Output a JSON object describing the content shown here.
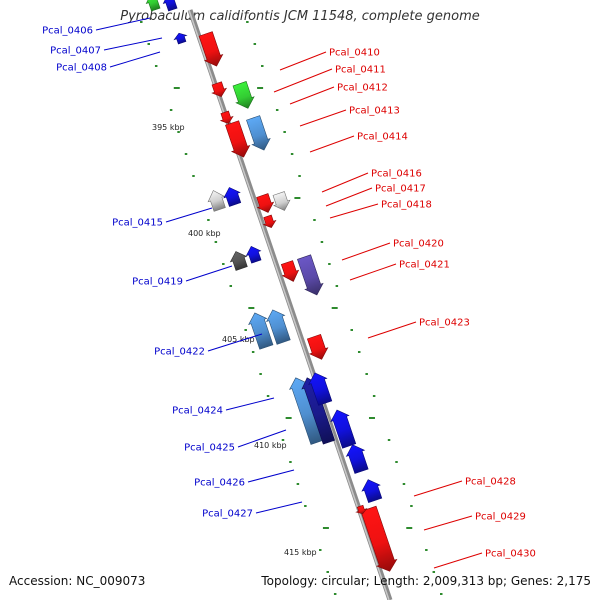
{
  "title": "Pyrobaculum calidifontis JCM 11548, complete genome",
  "footer": {
    "accession": "Accession: NC_009073",
    "topology": "Topology: circular; Length: 2,009,313 bp; Genes: 2,175"
  },
  "scale_labels": [
    "395 kbp",
    "400 kbp",
    "405 kbp",
    "410 kbp",
    "415 kbp"
  ],
  "colors": {
    "reverse_label": "#0000cc",
    "forward_label": "#dd0000",
    "backbone": "#8c8c8c",
    "tick": "#2e8b2e"
  },
  "genes_forward": [
    {
      "label": "Pcal_0410",
      "color": "#ee1111"
    },
    {
      "label": "Pcal_0411",
      "color": "#ee1111"
    },
    {
      "label": "Pcal_0412",
      "color": "#33cc33"
    },
    {
      "label": "Pcal_0413",
      "color": "#ee1111"
    },
    {
      "label": "Pcal_0414",
      "color": "#4f8fd0"
    },
    {
      "label": "Pcal_0416",
      "color": "#ee1111"
    },
    {
      "label": "Pcal_0417",
      "color": "#cfcfcf"
    },
    {
      "label": "Pcal_0418",
      "color": "#ee1111"
    },
    {
      "label": "Pcal_0420",
      "color": "#ee1111"
    },
    {
      "label": "Pcal_0421",
      "color": "#5b4aa8"
    },
    {
      "label": "Pcal_0423",
      "color": "#ee1111"
    },
    {
      "label": "Pcal_0428",
      "color": "#ee1111"
    },
    {
      "label": "Pcal_0429",
      "color": "#ee1111"
    },
    {
      "label": "Pcal_0430",
      "color": "#ee1111"
    }
  ],
  "genes_reverse": [
    {
      "label": "Pcal_0406",
      "color": "#33cc33"
    },
    {
      "label": "Pcal_0407",
      "color": "#1111dd"
    },
    {
      "label": "Pcal_0408",
      "color": "#1111dd"
    },
    {
      "label": "Pcal_0415",
      "color": "#cfcfcf"
    },
    {
      "label": "Pcal_0419",
      "color": "#555555"
    },
    {
      "label": "Pcal_0422",
      "color": "#4f8fd0"
    },
    {
      "label": "Pcal_0424",
      "color": "#4f8fd0"
    },
    {
      "label": "Pcal_0425",
      "color": "#1a1a8c"
    },
    {
      "label": "Pcal_0426",
      "color": "#1111dd"
    },
    {
      "label": "Pcal_0427",
      "color": "#1111dd"
    }
  ]
}
